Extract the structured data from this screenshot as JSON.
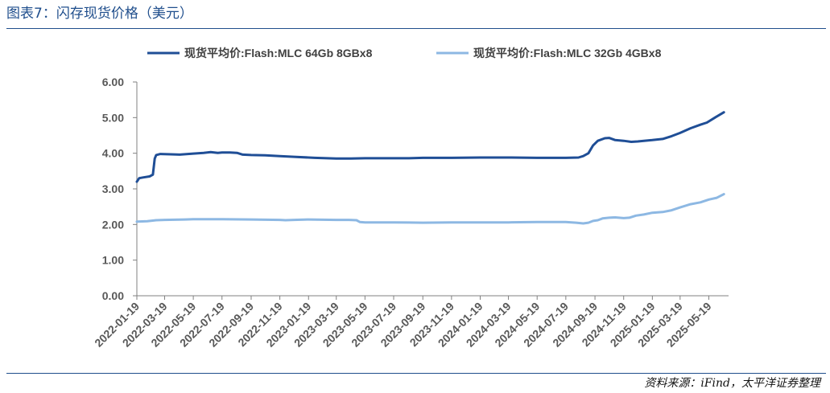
{
  "header": {
    "title": "图表7：闪存现货价格（美元）"
  },
  "footer": {
    "source": "资料来源：iFind，太平洋证券整理"
  },
  "chart_data": {
    "type": "line",
    "title": "",
    "xlabel": "",
    "ylabel": "",
    "ylim": [
      0,
      6
    ],
    "y_ticks": [
      "0.00",
      "1.00",
      "2.00",
      "3.00",
      "4.00",
      "5.00",
      "6.00"
    ],
    "x_range": [
      "2022-01-19",
      "2025-06-30"
    ],
    "x_ticks": [
      "2022-01-19",
      "2022-03-19",
      "2022-05-19",
      "2022-07-19",
      "2022-09-19",
      "2022-11-19",
      "2023-01-19",
      "2023-03-19",
      "2023-05-19",
      "2023-07-19",
      "2023-09-19",
      "2023-11-19",
      "2024-01-19",
      "2024-03-19",
      "2024-05-19",
      "2024-07-19",
      "2024-09-19",
      "2024-11-19",
      "2025-01-19",
      "2025-03-19",
      "2025-05-19"
    ],
    "legend_position": "top",
    "grid": false,
    "series": [
      {
        "name": "现货平均价:Flash:MLC 64Gb 8GBx8",
        "color": "#1f4e96",
        "points": [
          [
            "2022-01-19",
            3.2
          ],
          [
            "2022-01-24",
            3.3
          ],
          [
            "2022-02-01",
            3.32
          ],
          [
            "2022-02-15",
            3.35
          ],
          [
            "2022-02-22",
            3.4
          ],
          [
            "2022-02-26",
            3.85
          ],
          [
            "2022-03-01",
            3.95
          ],
          [
            "2022-03-10",
            3.98
          ],
          [
            "2022-04-01",
            3.97
          ],
          [
            "2022-04-20",
            3.96
          ],
          [
            "2022-05-19",
            3.99
          ],
          [
            "2022-06-10",
            4.01
          ],
          [
            "2022-06-25",
            4.03
          ],
          [
            "2022-07-10",
            4.01
          ],
          [
            "2022-07-19",
            4.02
          ],
          [
            "2022-08-05",
            4.02
          ],
          [
            "2022-08-20",
            4.01
          ],
          [
            "2022-09-01",
            3.96
          ],
          [
            "2022-09-19",
            3.95
          ],
          [
            "2022-10-19",
            3.94
          ],
          [
            "2022-11-19",
            3.92
          ],
          [
            "2022-12-19",
            3.9
          ],
          [
            "2023-01-19",
            3.88
          ],
          [
            "2023-02-01",
            3.87
          ],
          [
            "2023-03-19",
            3.85
          ],
          [
            "2023-04-19",
            3.85
          ],
          [
            "2023-05-19",
            3.86
          ],
          [
            "2023-06-19",
            3.86
          ],
          [
            "2023-07-19",
            3.86
          ],
          [
            "2023-08-19",
            3.86
          ],
          [
            "2023-09-19",
            3.87
          ],
          [
            "2023-11-19",
            3.87
          ],
          [
            "2024-01-19",
            3.88
          ],
          [
            "2024-03-19",
            3.88
          ],
          [
            "2024-05-19",
            3.87
          ],
          [
            "2024-07-19",
            3.87
          ],
          [
            "2024-08-15",
            3.88
          ],
          [
            "2024-08-25",
            3.92
          ],
          [
            "2024-09-05",
            4.0
          ],
          [
            "2024-09-15",
            4.22
          ],
          [
            "2024-09-25",
            4.35
          ],
          [
            "2024-10-10",
            4.42
          ],
          [
            "2024-10-19",
            4.43
          ],
          [
            "2024-11-01",
            4.37
          ],
          [
            "2024-11-19",
            4.35
          ],
          [
            "2024-12-05",
            4.32
          ],
          [
            "2024-12-19",
            4.33
          ],
          [
            "2025-01-01",
            4.35
          ],
          [
            "2025-01-19",
            4.37
          ],
          [
            "2025-02-10",
            4.4
          ],
          [
            "2025-03-01",
            4.48
          ],
          [
            "2025-03-19",
            4.57
          ],
          [
            "2025-04-10",
            4.7
          ],
          [
            "2025-05-01",
            4.8
          ],
          [
            "2025-05-15",
            4.86
          ],
          [
            "2025-06-01",
            5.0
          ],
          [
            "2025-06-20",
            5.15
          ]
        ]
      },
      {
        "name": "现货平均价:Flash:MLC 32Gb 4GBx8",
        "color": "#8db8e3",
        "points": [
          [
            "2022-01-19",
            2.08
          ],
          [
            "2022-02-10",
            2.09
          ],
          [
            "2022-03-01",
            2.12
          ],
          [
            "2022-03-19",
            2.13
          ],
          [
            "2022-05-01",
            2.14
          ],
          [
            "2022-05-19",
            2.15
          ],
          [
            "2022-07-19",
            2.15
          ],
          [
            "2022-09-19",
            2.14
          ],
          [
            "2022-11-19",
            2.13
          ],
          [
            "2022-12-01",
            2.12
          ],
          [
            "2022-12-19",
            2.13
          ],
          [
            "2023-01-19",
            2.14
          ],
          [
            "2023-03-19",
            2.13
          ],
          [
            "2023-04-15",
            2.13
          ],
          [
            "2023-05-01",
            2.12
          ],
          [
            "2023-05-08",
            2.07
          ],
          [
            "2023-05-19",
            2.06
          ],
          [
            "2023-07-19",
            2.06
          ],
          [
            "2023-09-19",
            2.05
          ],
          [
            "2023-11-19",
            2.06
          ],
          [
            "2024-01-19",
            2.06
          ],
          [
            "2024-03-19",
            2.06
          ],
          [
            "2024-05-19",
            2.07
          ],
          [
            "2024-07-19",
            2.07
          ],
          [
            "2024-08-10",
            2.05
          ],
          [
            "2024-08-25",
            2.03
          ],
          [
            "2024-09-05",
            2.05
          ],
          [
            "2024-09-15",
            2.1
          ],
          [
            "2024-09-25",
            2.12
          ],
          [
            "2024-10-05",
            2.17
          ],
          [
            "2024-10-19",
            2.19
          ],
          [
            "2024-11-01",
            2.2
          ],
          [
            "2024-11-19",
            2.18
          ],
          [
            "2024-12-01",
            2.19
          ],
          [
            "2024-12-15",
            2.25
          ],
          [
            "2025-01-01",
            2.28
          ],
          [
            "2025-01-19",
            2.33
          ],
          [
            "2025-02-10",
            2.35
          ],
          [
            "2025-03-01",
            2.4
          ],
          [
            "2025-03-19",
            2.48
          ],
          [
            "2025-04-10",
            2.57
          ],
          [
            "2025-05-01",
            2.62
          ],
          [
            "2025-05-19",
            2.7
          ],
          [
            "2025-06-05",
            2.75
          ],
          [
            "2025-06-20",
            2.85
          ]
        ]
      }
    ]
  }
}
